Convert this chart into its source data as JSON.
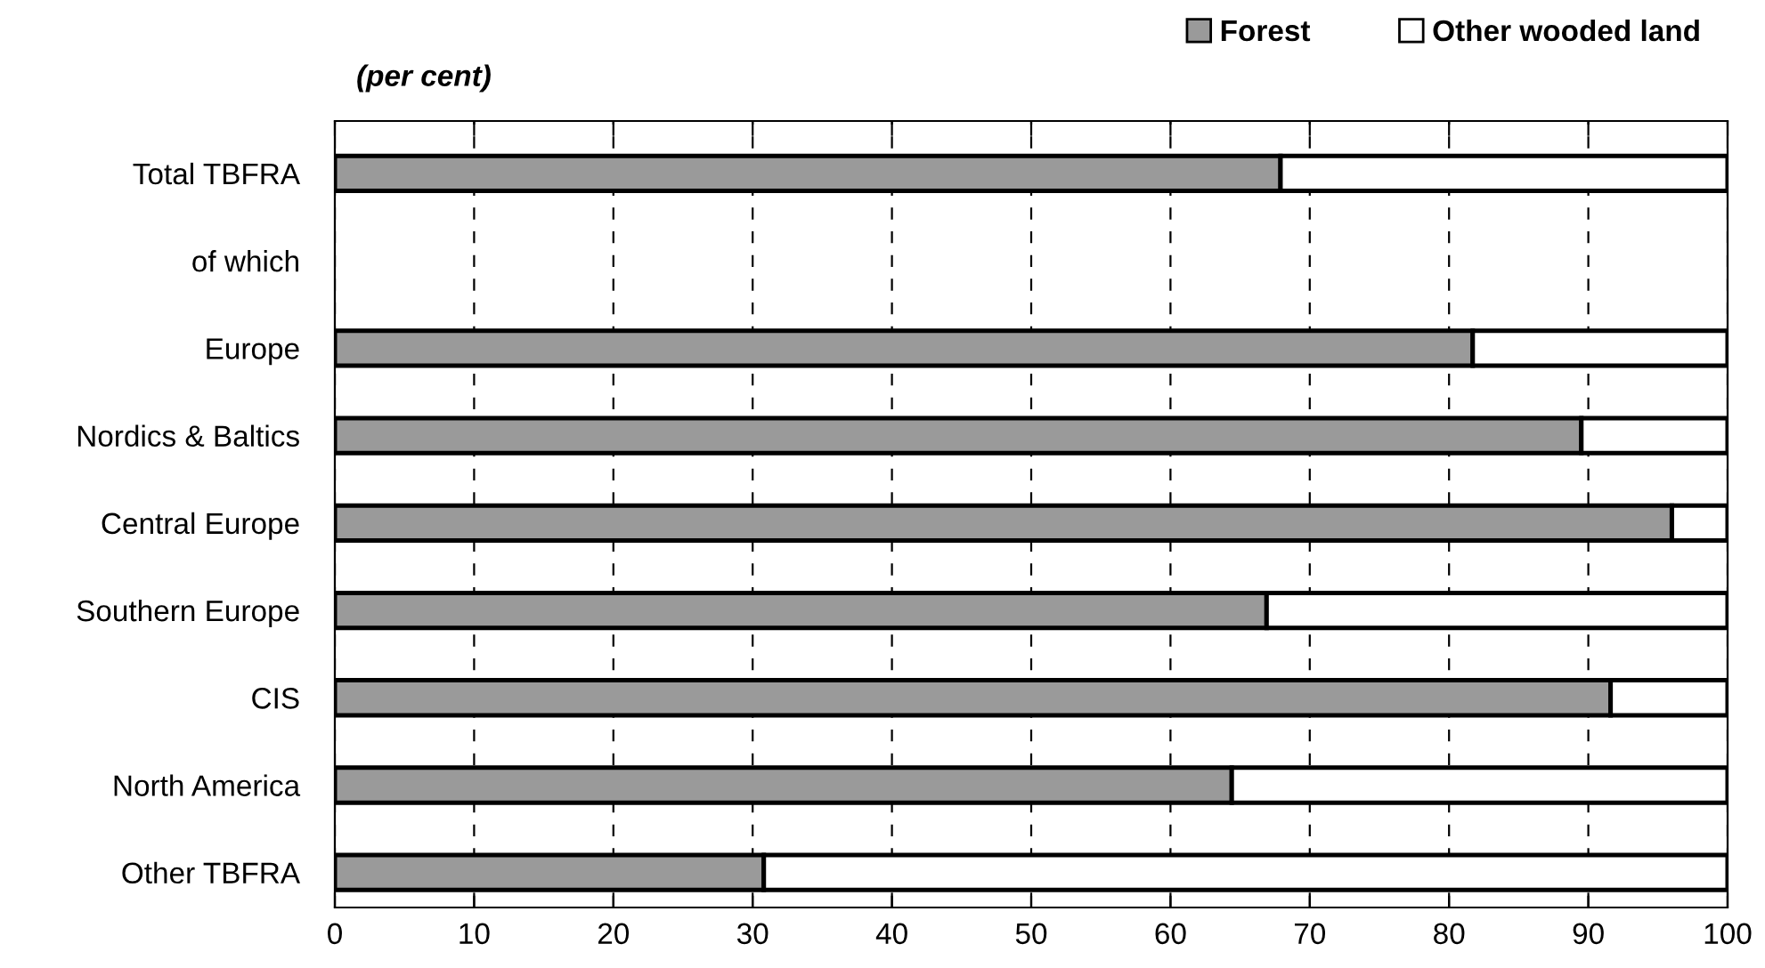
{
  "chart_data": {
    "type": "bar",
    "orientation": "horizontal",
    "stacked": true,
    "subtitle": "(per cent)",
    "categories": [
      "Total TBFRA",
      "of which",
      "Europe",
      "Nordics & Baltics",
      "Central Europe",
      "Southern Europe",
      "CIS",
      "North America",
      "Other TBFRA"
    ],
    "series": [
      {
        "name": "Forest",
        "color": "#9a9a9a",
        "values": [
          67.9,
          null,
          81.7,
          89.5,
          96,
          66.9,
          91.6,
          64.4,
          30.8
        ]
      },
      {
        "name": "Other wooded land",
        "color": "#ffffff",
        "values": [
          32.1,
          null,
          18.3,
          10.5,
          4,
          33.1,
          8.4,
          35.6,
          69.2
        ]
      }
    ],
    "xlim": [
      0,
      100
    ],
    "xticks": [
      0,
      10,
      20,
      30,
      40,
      50,
      60,
      70,
      80,
      90,
      100
    ],
    "grid": "x",
    "legend": "top right"
  }
}
